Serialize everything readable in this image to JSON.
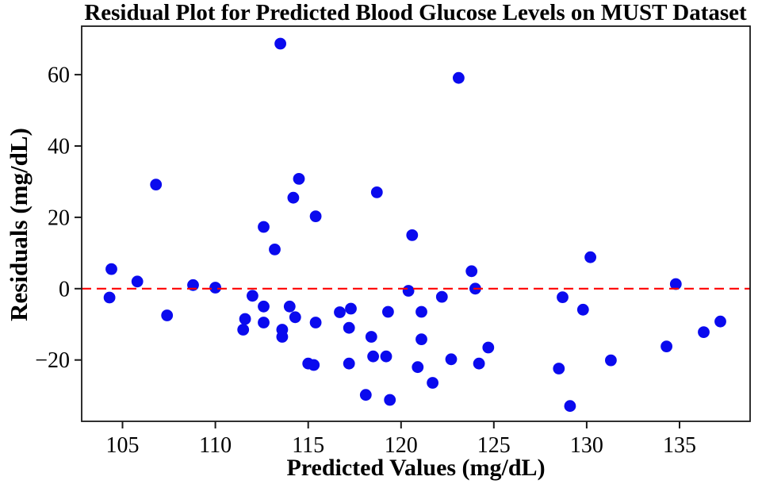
{
  "chart_data": {
    "type": "scatter",
    "title": "Residual Plot for Predicted Blood Glucose Levels on MUST Dataset",
    "xlabel": "Predicted Values (mg/dL)",
    "ylabel": "Residuals (mg/dL)",
    "xlim": [
      102.8,
      138.8
    ],
    "ylim": [
      -37.2,
      73.6
    ],
    "grid": false,
    "legend": null,
    "x_ticks": {
      "values": [
        105,
        110,
        115,
        120,
        125,
        130,
        135
      ],
      "labels": [
        "105",
        "110",
        "115",
        "120",
        "125",
        "130",
        "135"
      ]
    },
    "y_ticks": {
      "values": [
        -20,
        0,
        20,
        40,
        60
      ],
      "labels": [
        "−20",
        "0",
        "20",
        "40",
        "60"
      ]
    },
    "zero_line": {
      "y": 0,
      "color": "#ff0000",
      "style": "dashed"
    },
    "point_color": "#0a0aee",
    "axis_color": "#1a1a1a",
    "marker_radius": 7.4,
    "points": [
      [
        104.3,
        -2.5
      ],
      [
        104.4,
        5.5
      ],
      [
        105.8,
        2
      ],
      [
        106.8,
        29.2
      ],
      [
        107.4,
        -7.5
      ],
      [
        108.8,
        1
      ],
      [
        110.0,
        0.3
      ],
      [
        111.5,
        -11.5
      ],
      [
        111.6,
        -8.5
      ],
      [
        112.0,
        -2
      ],
      [
        112.6,
        -5
      ],
      [
        112.6,
        -9.5
      ],
      [
        112.6,
        17.3
      ],
      [
        113.2,
        11
      ],
      [
        113.5,
        68.7
      ],
      [
        113.6,
        -11.5
      ],
      [
        113.6,
        -13.5
      ],
      [
        114.0,
        -5
      ],
      [
        114.2,
        25.5
      ],
      [
        114.3,
        -8
      ],
      [
        114.5,
        30.8
      ],
      [
        115.0,
        -21
      ],
      [
        115.3,
        -21.4
      ],
      [
        115.4,
        20.3
      ],
      [
        115.4,
        -9.5
      ],
      [
        116.7,
        -6.6
      ],
      [
        117.2,
        -11
      ],
      [
        117.2,
        -21
      ],
      [
        117.3,
        -5.6
      ],
      [
        118.1,
        -29.8
      ],
      [
        118.4,
        -13.5
      ],
      [
        118.5,
        -19
      ],
      [
        118.7,
        27
      ],
      [
        119.2,
        -19
      ],
      [
        119.3,
        -6.5
      ],
      [
        119.4,
        -31.2
      ],
      [
        120.4,
        -0.6
      ],
      [
        120.6,
        15
      ],
      [
        120.9,
        -22
      ],
      [
        121.1,
        -6.5
      ],
      [
        121.1,
        -14.2
      ],
      [
        121.7,
        -26.4
      ],
      [
        122.2,
        -2.3
      ],
      [
        122.7,
        -19.8
      ],
      [
        123.1,
        59.1
      ],
      [
        123.8,
        4.9
      ],
      [
        124.0,
        0
      ],
      [
        124.2,
        -21
      ],
      [
        124.7,
        -16.5
      ],
      [
        128.5,
        -22.4
      ],
      [
        128.7,
        -2.4
      ],
      [
        129.1,
        -32.9
      ],
      [
        129.8,
        -5.9
      ],
      [
        130.2,
        8.8
      ],
      [
        131.3,
        -20.1
      ],
      [
        134.3,
        -16.2
      ],
      [
        134.8,
        1.3
      ],
      [
        136.3,
        -12.2
      ],
      [
        137.2,
        -9.2
      ]
    ]
  }
}
